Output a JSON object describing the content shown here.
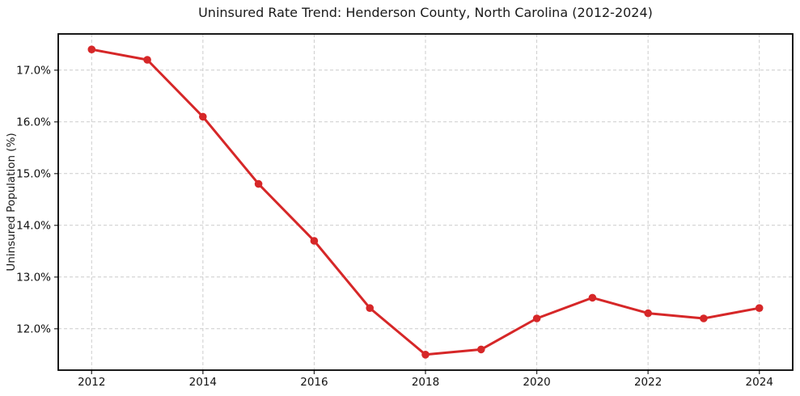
{
  "chart_data": {
    "type": "line",
    "title": "Uninsured Rate Trend: Henderson County, North Carolina (2012-2024)",
    "xlabel": "",
    "ylabel": "Uninsured Population (%)",
    "x": [
      2012,
      2013,
      2014,
      2015,
      2016,
      2017,
      2018,
      2019,
      2020,
      2021,
      2022,
      2023,
      2024
    ],
    "values": [
      17.4,
      17.2,
      16.1,
      14.8,
      13.7,
      12.4,
      11.5,
      11.6,
      12.2,
      12.6,
      12.3,
      12.2,
      12.4
    ],
    "xlim": [
      2011.4,
      2024.6
    ],
    "ylim": [
      11.2,
      17.7
    ],
    "xtick_values": [
      2012,
      2014,
      2016,
      2018,
      2020,
      2022,
      2024
    ],
    "xtick_labels": [
      "2012",
      "2014",
      "2016",
      "2018",
      "2020",
      "2022",
      "2024"
    ],
    "ytick_values": [
      12,
      13,
      14,
      15,
      16,
      17
    ],
    "ytick_labels": [
      "12.0%",
      "13.0%",
      "14.0%",
      "15.0%",
      "16.0%",
      "17.0%"
    ],
    "line_color": "#d62728",
    "marker": "circle",
    "marker_radius": 4.8,
    "line_width": 3,
    "grid": true,
    "grid_style": "dashed",
    "grid_color": "#cccccc",
    "spine_color": "#000000",
    "background": "#ffffff",
    "legend": false
  }
}
